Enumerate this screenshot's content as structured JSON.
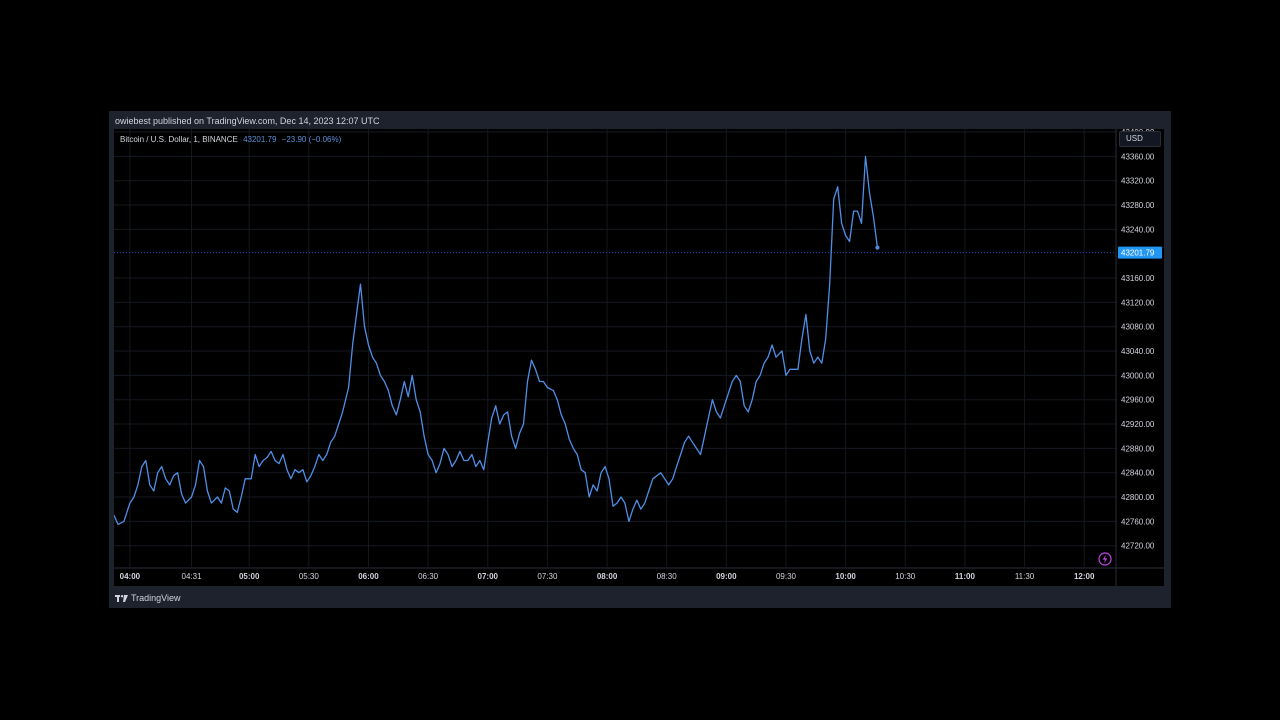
{
  "header": {
    "published": "owiebest published on TradingView.com, Dec 14, 2023 12:07 UTC"
  },
  "legend": {
    "symbol": "Bitcoin / U.S. Dollar, 1, BINANCE",
    "price": "43201.79",
    "change": "−23.90 (−0.06%)"
  },
  "currency": "USD",
  "footer": {
    "brand": "TradingView"
  },
  "icons": {
    "alert": "lightning-icon",
    "logo": "tradingview-logo-icon"
  },
  "colors": {
    "line": "#4f8fe6",
    "last_price_bg": "#2196f3",
    "grid": "#15181f",
    "axis_text": "#d1d4dc",
    "background": "#000000",
    "frame": "#1e222d"
  },
  "chart_data": {
    "type": "line",
    "title": "Bitcoin / U.S. Dollar, 1, BINANCE",
    "xlabel": "",
    "ylabel": "",
    "ylim": [
      42685,
      43405
    ],
    "grid": true,
    "last_price": 43201.79,
    "last_price_label": "43201.79",
    "x_tick_labels": [
      {
        "label": "04:00",
        "time": "04:00",
        "bold": true
      },
      {
        "label": "04:31",
        "time": "04:31",
        "bold": false
      },
      {
        "label": "05:00",
        "time": "05:00",
        "bold": true
      },
      {
        "label": "05:30",
        "time": "05:30",
        "bold": false
      },
      {
        "label": "06:00",
        "time": "06:00",
        "bold": true
      },
      {
        "label": "06:30",
        "time": "06:30",
        "bold": false
      },
      {
        "label": "07:00",
        "time": "07:00",
        "bold": true
      },
      {
        "label": "07:30",
        "time": "07:30",
        "bold": false
      },
      {
        "label": "08:00",
        "time": "08:00",
        "bold": true
      },
      {
        "label": "08:30",
        "time": "08:30",
        "bold": false
      },
      {
        "label": "09:00",
        "time": "09:00",
        "bold": true
      },
      {
        "label": "09:30",
        "time": "09:30",
        "bold": false
      },
      {
        "label": "10:00",
        "time": "10:00",
        "bold": true
      },
      {
        "label": "10:30",
        "time": "10:30",
        "bold": false
      },
      {
        "label": "11:00",
        "time": "11:00",
        "bold": true
      },
      {
        "label": "11:30",
        "time": "11:30",
        "bold": false
      },
      {
        "label": "12:00",
        "time": "12:00",
        "bold": true
      }
    ],
    "y_tick_labels": [
      "43400.00",
      "43360.00",
      "43320.00",
      "43280.00",
      "43240.00",
      "43160.00",
      "43120.00",
      "43080.00",
      "43040.00",
      "43000.00",
      "42960.00",
      "42920.00",
      "42880.00",
      "42840.00",
      "42800.00",
      "42760.00",
      "42720.00"
    ],
    "series": [
      {
        "points": [
          [
            "03:52",
            42770
          ],
          [
            "03:54",
            42755
          ],
          [
            "03:57",
            42760
          ],
          [
            "04:00",
            42790
          ],
          [
            "04:02",
            42800
          ],
          [
            "04:04",
            42820
          ],
          [
            "04:06",
            42850
          ],
          [
            "04:08",
            42860
          ],
          [
            "04:10",
            42820
          ],
          [
            "04:12",
            42810
          ],
          [
            "04:14",
            42840
          ],
          [
            "04:16",
            42850
          ],
          [
            "04:18",
            42830
          ],
          [
            "04:20",
            42820
          ],
          [
            "04:22",
            42835
          ],
          [
            "04:24",
            42840
          ],
          [
            "04:26",
            42805
          ],
          [
            "04:28",
            42790
          ],
          [
            "04:31",
            42800
          ],
          [
            "04:33",
            42820
          ],
          [
            "04:35",
            42860
          ],
          [
            "04:37",
            42850
          ],
          [
            "04:39",
            42810
          ],
          [
            "04:41",
            42790
          ],
          [
            "04:44",
            42800
          ],
          [
            "04:46",
            42790
          ],
          [
            "04:48",
            42815
          ],
          [
            "04:50",
            42810
          ],
          [
            "04:52",
            42780
          ],
          [
            "04:54",
            42775
          ],
          [
            "04:56",
            42800
          ],
          [
            "04:58",
            42830
          ],
          [
            "05:01",
            42830
          ],
          [
            "05:03",
            42870
          ],
          [
            "05:05",
            42850
          ],
          [
            "05:07",
            42860
          ],
          [
            "05:09",
            42865
          ],
          [
            "05:11",
            42875
          ],
          [
            "05:13",
            42860
          ],
          [
            "05:15",
            42855
          ],
          [
            "05:17",
            42870
          ],
          [
            "05:19",
            42845
          ],
          [
            "05:21",
            42830
          ],
          [
            "05:23",
            42845
          ],
          [
            "05:25",
            42840
          ],
          [
            "05:27",
            42845
          ],
          [
            "05:29",
            42825
          ],
          [
            "05:31",
            42835
          ],
          [
            "05:33",
            42850
          ],
          [
            "05:35",
            42870
          ],
          [
            "05:37",
            42860
          ],
          [
            "05:39",
            42870
          ],
          [
            "05:41",
            42890
          ],
          [
            "05:43",
            42900
          ],
          [
            "05:45",
            42920
          ],
          [
            "05:47",
            42940
          ],
          [
            "05:50",
            42980
          ],
          [
            "05:52",
            43050
          ],
          [
            "05:54",
            43100
          ],
          [
            "05:56",
            43150
          ],
          [
            "05:58",
            43080
          ],
          [
            "06:00",
            43050
          ],
          [
            "06:02",
            43030
          ],
          [
            "06:04",
            43020
          ],
          [
            "06:06",
            43000
          ],
          [
            "06:08",
            42990
          ],
          [
            "06:10",
            42975
          ],
          [
            "06:12",
            42950
          ],
          [
            "06:14",
            42935
          ],
          [
            "06:16",
            42960
          ],
          [
            "06:18",
            42990
          ],
          [
            "06:20",
            42965
          ],
          [
            "06:22",
            43000
          ],
          [
            "06:24",
            42960
          ],
          [
            "06:26",
            42940
          ],
          [
            "06:28",
            42900
          ],
          [
            "06:30",
            42870
          ],
          [
            "06:32",
            42860
          ],
          [
            "06:34",
            42840
          ],
          [
            "06:36",
            42855
          ],
          [
            "06:38",
            42880
          ],
          [
            "06:40",
            42870
          ],
          [
            "06:42",
            42850
          ],
          [
            "06:44",
            42860
          ],
          [
            "06:46",
            42875
          ],
          [
            "06:48",
            42860
          ],
          [
            "06:50",
            42860
          ],
          [
            "06:52",
            42870
          ],
          [
            "06:54",
            42850
          ],
          [
            "06:56",
            42860
          ],
          [
            "06:58",
            42845
          ],
          [
            "07:00",
            42890
          ],
          [
            "07:02",
            42930
          ],
          [
            "07:04",
            42950
          ],
          [
            "07:06",
            42920
          ],
          [
            "07:08",
            42935
          ],
          [
            "07:10",
            42940
          ],
          [
            "07:12",
            42900
          ],
          [
            "07:14",
            42880
          ],
          [
            "07:16",
            42905
          ],
          [
            "07:18",
            42920
          ],
          [
            "07:20",
            42990
          ],
          [
            "07:22",
            43025
          ],
          [
            "07:24",
            43010
          ],
          [
            "07:26",
            42990
          ],
          [
            "07:28",
            42990
          ],
          [
            "07:30",
            42980
          ],
          [
            "07:33",
            42975
          ],
          [
            "07:35",
            42960
          ],
          [
            "07:37",
            42935
          ],
          [
            "07:39",
            42920
          ],
          [
            "07:41",
            42895
          ],
          [
            "07:43",
            42880
          ],
          [
            "07:45",
            42870
          ],
          [
            "07:47",
            42845
          ],
          [
            "07:49",
            42840
          ],
          [
            "07:51",
            42800
          ],
          [
            "07:53",
            42820
          ],
          [
            "07:55",
            42810
          ],
          [
            "07:57",
            42840
          ],
          [
            "07:59",
            42850
          ],
          [
            "08:01",
            42830
          ],
          [
            "08:03",
            42785
          ],
          [
            "08:05",
            42790
          ],
          [
            "08:07",
            42800
          ],
          [
            "08:09",
            42790
          ],
          [
            "08:11",
            42760
          ],
          [
            "08:13",
            42780
          ],
          [
            "08:15",
            42795
          ],
          [
            "08:17",
            42780
          ],
          [
            "08:19",
            42790
          ],
          [
            "08:21",
            42810
          ],
          [
            "08:23",
            42830
          ],
          [
            "08:25",
            42835
          ],
          [
            "08:27",
            42840
          ],
          [
            "08:29",
            42830
          ],
          [
            "08:31",
            42820
          ],
          [
            "08:33",
            42830
          ],
          [
            "08:35",
            42850
          ],
          [
            "08:37",
            42870
          ],
          [
            "08:39",
            42890
          ],
          [
            "08:41",
            42900
          ],
          [
            "08:43",
            42890
          ],
          [
            "08:45",
            42880
          ],
          [
            "08:47",
            42870
          ],
          [
            "08:49",
            42900
          ],
          [
            "08:51",
            42930
          ],
          [
            "08:53",
            42960
          ],
          [
            "08:55",
            42940
          ],
          [
            "08:57",
            42930
          ],
          [
            "08:59",
            42950
          ],
          [
            "09:01",
            42970
          ],
          [
            "09:03",
            42990
          ],
          [
            "09:05",
            43000
          ],
          [
            "09:07",
            42990
          ],
          [
            "09:09",
            42950
          ],
          [
            "09:11",
            42940
          ],
          [
            "09:13",
            42960
          ],
          [
            "09:15",
            42990
          ],
          [
            "09:17",
            43000
          ],
          [
            "09:19",
            43020
          ],
          [
            "09:21",
            43030
          ],
          [
            "09:23",
            43050
          ],
          [
            "09:25",
            43030
          ],
          [
            "09:28",
            43040
          ],
          [
            "09:30",
            43000
          ],
          [
            "09:32",
            43010
          ],
          [
            "09:34",
            43010
          ],
          [
            "09:36",
            43010
          ],
          [
            "09:38",
            43060
          ],
          [
            "09:40",
            43100
          ],
          [
            "09:42",
            43040
          ],
          [
            "09:44",
            43020
          ],
          [
            "09:46",
            43030
          ],
          [
            "09:48",
            43020
          ],
          [
            "09:50",
            43060
          ],
          [
            "09:52",
            43150
          ],
          [
            "09:54",
            43290
          ],
          [
            "09:56",
            43310
          ],
          [
            "09:58",
            43250
          ],
          [
            "10:00",
            43230
          ],
          [
            "10:02",
            43220
          ],
          [
            "10:04",
            43270
          ],
          [
            "10:06",
            43270
          ],
          [
            "10:08",
            43250
          ],
          [
            "10:10",
            43360
          ],
          [
            "10:12",
            43300
          ],
          [
            "10:14",
            43260
          ],
          [
            "10:16",
            43210
          ]
        ]
      }
    ]
  }
}
